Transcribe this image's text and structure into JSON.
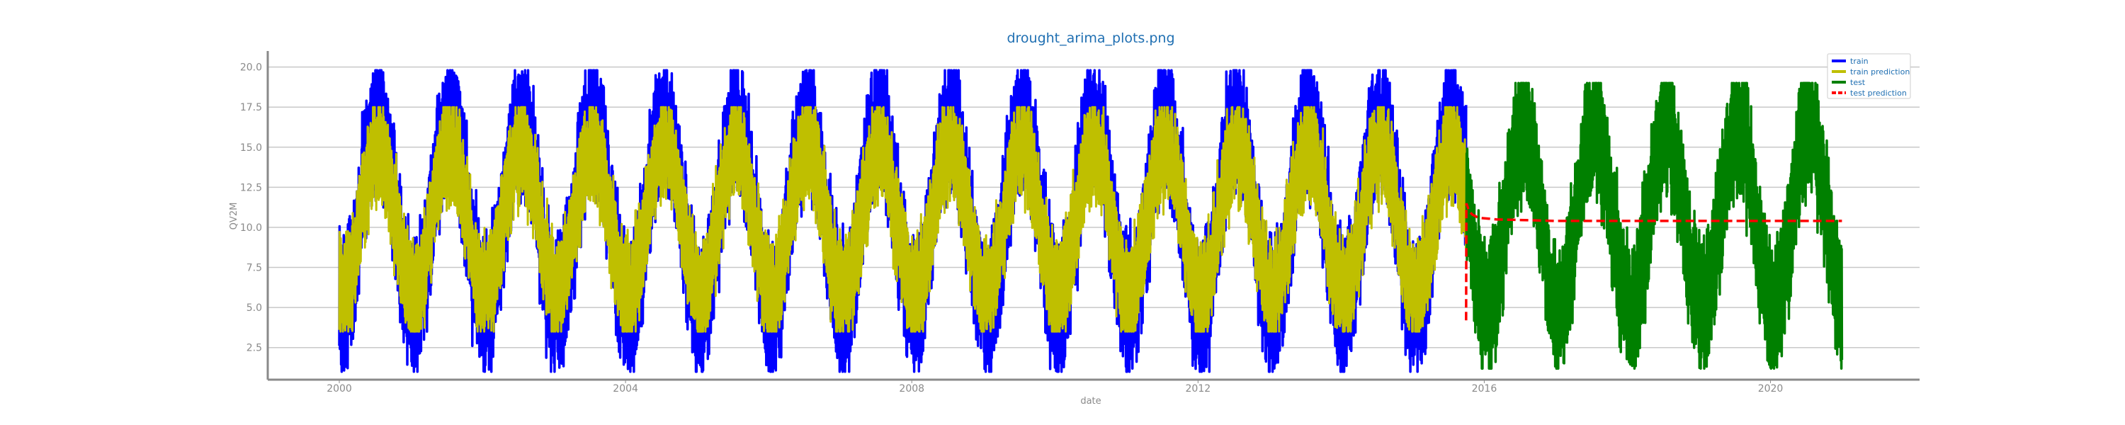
{
  "chart_data": {
    "type": "line",
    "title": "drought_arima_plots.png",
    "xlabel": "date",
    "ylabel": "QV2M",
    "x_ticks": [
      "2000",
      "2004",
      "2008",
      "2012",
      "2016",
      "2020"
    ],
    "y_ticks": [
      "2.5",
      "5.0",
      "7.5",
      "10.0",
      "12.5",
      "15.0",
      "17.5",
      "20.0"
    ],
    "xlim": [
      "1999-01",
      "2022-02"
    ],
    "ylim": [
      0.5,
      21.0
    ],
    "grid": "horizontal",
    "legend_position": "top-right",
    "series": [
      {
        "name": "train",
        "color": "#0000ff",
        "x_range": [
          "2000-01-01",
          "2015-09-30"
        ],
        "seasonal_peak_month": "Jul",
        "approx_monthly_range": [
          3.0,
          18.5
        ],
        "min": 1.0,
        "max": 19.8
      },
      {
        "name": "train prediction",
        "color": "#bfbf00",
        "x_range": [
          "2000-01-01",
          "2015-09-30"
        ],
        "seasonal_peak_month": "Jul",
        "approx_monthly_range": [
          4.5,
          16.5
        ],
        "min": 3.5,
        "max": 17.5
      },
      {
        "name": "test",
        "color": "#008000",
        "x_range": [
          "2015-10-01",
          "2020-12-31"
        ],
        "seasonal_peak_month": "Jul",
        "approx_monthly_range": [
          3.0,
          18.0
        ],
        "min": 1.2,
        "max": 19.0
      },
      {
        "name": "test prediction",
        "color": "#ff0000",
        "x": [
          "2015-09-30",
          "2015-10-01",
          "2015-10-15",
          "2015-11-01",
          "2015-12-01",
          "2016-03-01",
          "2017-01-01",
          "2020-12-31"
        ],
        "y": [
          4.2,
          11.5,
          11.0,
          10.8,
          10.6,
          10.5,
          10.4,
          10.4
        ]
      }
    ]
  }
}
